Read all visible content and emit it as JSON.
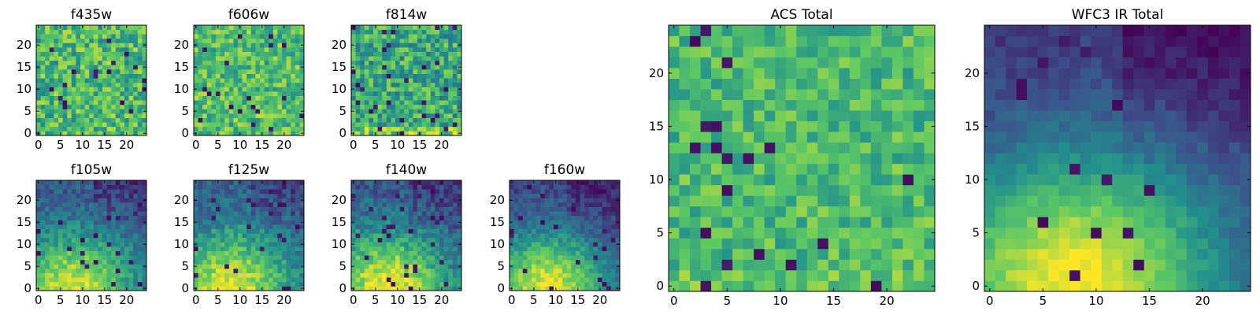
{
  "figure": {
    "colormap": "viridis",
    "colors": [
      "#440154",
      "#3b528b",
      "#21908d",
      "#5dc963",
      "#fde725"
    ]
  },
  "chart_data": [
    {
      "type": "heatmap",
      "title": "f435w",
      "xticks": [
        0,
        5,
        10,
        15,
        20
      ],
      "yticks": [
        0,
        5,
        10,
        15,
        20
      ],
      "xlim": [
        -0.5,
        24.5
      ],
      "ylim": [
        -0.5,
        24.5
      ],
      "grid": false,
      "grid_size": [
        25,
        25
      ],
      "pattern": "noise",
      "level_mean": 0.68,
      "level_spread": 0.22,
      "gradient": 0.0,
      "dark_fraction": 0.03
    },
    {
      "type": "heatmap",
      "title": "f606w",
      "xticks": [
        0,
        5,
        10,
        15,
        20
      ],
      "yticks": [
        0,
        5,
        10,
        15,
        20
      ],
      "xlim": [
        -0.5,
        24.5
      ],
      "ylim": [
        -0.5,
        24.5
      ],
      "grid": false,
      "grid_size": [
        25,
        25
      ],
      "pattern": "noise",
      "level_mean": 0.7,
      "level_spread": 0.2,
      "gradient": 0.0,
      "dark_fraction": 0.04
    },
    {
      "type": "heatmap",
      "title": "f814w",
      "xticks": [
        0,
        5,
        10,
        15,
        20
      ],
      "yticks": [
        0,
        5,
        10,
        15,
        20
      ],
      "xlim": [
        -0.5,
        24.5
      ],
      "ylim": [
        -0.5,
        24.5
      ],
      "grid": false,
      "grid_size": [
        25,
        25
      ],
      "pattern": "noise",
      "level_mean": 0.6,
      "level_spread": 0.24,
      "gradient": 0.15,
      "dark_fraction": 0.05
    },
    {
      "type": "heatmap",
      "title": "f105w",
      "xticks": [
        0,
        5,
        10,
        15,
        20
      ],
      "yticks": [
        0,
        5,
        10,
        15,
        20
      ],
      "xlim": [
        -0.5,
        24.5
      ],
      "ylim": [
        -0.5,
        24.5
      ],
      "grid": false,
      "grid_size": [
        25,
        25
      ],
      "pattern": "gradient",
      "level_mean": 0.42,
      "level_spread": 0.12,
      "gradient": 0.65,
      "dark_fraction": 0.04
    },
    {
      "type": "heatmap",
      "title": "f125w",
      "xticks": [
        0,
        5,
        10,
        15,
        20
      ],
      "yticks": [
        0,
        5,
        10,
        15,
        20
      ],
      "xlim": [
        -0.5,
        24.5
      ],
      "ylim": [
        -0.5,
        24.5
      ],
      "grid": false,
      "grid_size": [
        25,
        25
      ],
      "pattern": "gradient",
      "level_mean": 0.45,
      "level_spread": 0.13,
      "gradient": 0.65,
      "dark_fraction": 0.04
    },
    {
      "type": "heatmap",
      "title": "f140w",
      "xticks": [
        0,
        5,
        10,
        15,
        20
      ],
      "yticks": [
        0,
        5,
        10,
        15,
        20
      ],
      "xlim": [
        -0.5,
        24.5
      ],
      "ylim": [
        -0.5,
        24.5
      ],
      "grid": false,
      "grid_size": [
        25,
        25
      ],
      "pattern": "gradient",
      "level_mean": 0.42,
      "level_spread": 0.13,
      "gradient": 0.7,
      "dark_fraction": 0.04
    },
    {
      "type": "heatmap",
      "title": "f160w",
      "xticks": [
        0,
        5,
        10,
        15,
        20
      ],
      "yticks": [
        0,
        5,
        10,
        15,
        20
      ],
      "xlim": [
        -0.5,
        24.5
      ],
      "ylim": [
        -0.5,
        24.5
      ],
      "grid": false,
      "grid_size": [
        25,
        25
      ],
      "pattern": "gradient",
      "level_mean": 0.35,
      "level_spread": 0.1,
      "gradient": 0.75,
      "dark_fraction": 0.03
    },
    {
      "type": "heatmap",
      "title": "ACS Total",
      "xticks": [
        0,
        5,
        10,
        15,
        20
      ],
      "yticks": [
        0,
        5,
        10,
        15,
        20
      ],
      "xlim": [
        -0.5,
        24.5
      ],
      "ylim": [
        -0.5,
        24.5
      ],
      "grid": false,
      "grid_size": [
        25,
        25
      ],
      "pattern": "noise",
      "level_mean": 0.68,
      "level_spread": 0.16,
      "gradient": 0.05,
      "dark_fraction": 0.03
    },
    {
      "type": "heatmap",
      "title": "WFC3 IR Total",
      "xticks": [
        0,
        5,
        10,
        15,
        20
      ],
      "yticks": [
        0,
        5,
        10,
        15,
        20
      ],
      "xlim": [
        -0.5,
        24.5
      ],
      "ylim": [
        -0.5,
        24.5
      ],
      "grid": false,
      "grid_size": [
        25,
        25
      ],
      "pattern": "gradient",
      "level_mean": 0.3,
      "level_spread": 0.06,
      "gradient": 0.85,
      "dark_fraction": 0.02
    }
  ]
}
